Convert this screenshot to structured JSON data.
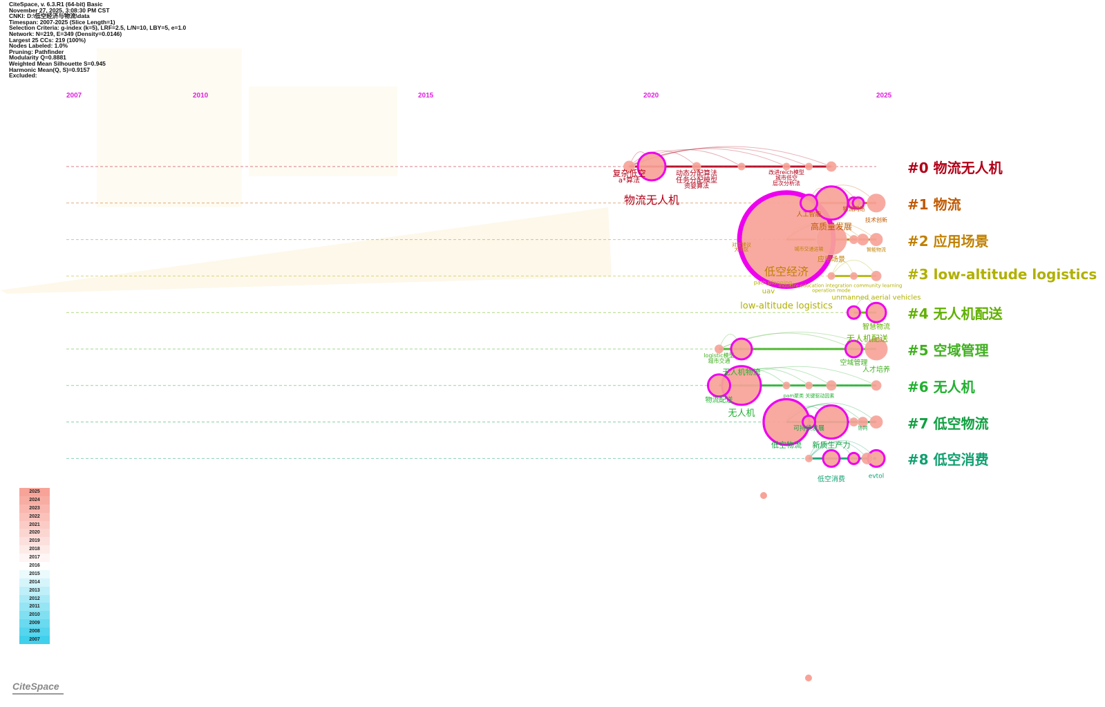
{
  "info": [
    "CiteSpace, v. 6.3.R1 (64-bit) Basic",
    "November 27, 2025, 3:08:30 PM CST",
    "CNKI: D:\\低空经济与物流\\data",
    "Timespan: 2007-2025 (Slice Length=1)",
    "Selection Criteria: g-index (k=5), LRF=2.5, L/N=10, LBY=5, e=1.0",
    "Network: N=219, E=349 (Density=0.0146)",
    "Largest 25 CCs: 219 (100%)",
    "Nodes Labeled: 1.0%",
    "Pruning: Pathfinder",
    "Modularity Q=0.8881",
    "Weighted Mean Silhouette S=0.945",
    "Harmonic Mean(Q, S)=0.9157",
    "Excluded:"
  ],
  "years": [
    "2007",
    "2010",
    "2015",
    "2020",
    "2025"
  ],
  "clusters": [
    {
      "label": "#0 物流无人机",
      "color": "#b00018"
    },
    {
      "label": "#1 物流",
      "color": "#c05a00"
    },
    {
      "label": "#2 应用场景",
      "color": "#c08000"
    },
    {
      "label": "#3 low-altitude logistics",
      "color": "#b0b000"
    },
    {
      "label": "#4 无人机配送",
      "color": "#60b000"
    },
    {
      "label": "#5 空域管理",
      "color": "#40b020"
    },
    {
      "label": "#6 无人机",
      "color": "#20b030"
    },
    {
      "label": "#7 低空物流",
      "color": "#10a040"
    },
    {
      "label": "#8 低空消费",
      "color": "#10a070"
    }
  ],
  "nodes": [
    {
      "c": 0,
      "year": 2019.5,
      "r": 8,
      "burst": false
    },
    {
      "c": 0,
      "year": 2020,
      "r": 20,
      "burst": true
    },
    {
      "c": 0,
      "year": 2021,
      "r": 6
    },
    {
      "c": 0,
      "year": 2022,
      "r": 5
    },
    {
      "c": 0,
      "year": 2023,
      "r": 5
    },
    {
      "c": 0,
      "year": 2023.5,
      "r": 5
    },
    {
      "c": 0,
      "year": 2024,
      "r": 7
    },
    {
      "c": 1,
      "year": 2023.5,
      "r": 12,
      "burst": true
    },
    {
      "c": 1,
      "year": 2024,
      "r": 24,
      "burst": true
    },
    {
      "c": 1,
      "year": 2024.5,
      "r": 8,
      "burst": true
    },
    {
      "c": 1,
      "year": 2024.6,
      "r": 8,
      "burst": true
    },
    {
      "c": 1,
      "year": 2025,
      "r": 13
    },
    {
      "c": 2,
      "year": 2023,
      "r": 68,
      "burst": true
    },
    {
      "c": 2,
      "year": 2024,
      "r": 22
    },
    {
      "c": 2,
      "year": 2024.5,
      "r": 6
    },
    {
      "c": 2,
      "year": 2024.7,
      "r": 8
    },
    {
      "c": 2,
      "year": 2025,
      "r": 9
    },
    {
      "c": 3,
      "year": 2024,
      "r": 5
    },
    {
      "c": 3,
      "year": 2024.5,
      "r": 5
    },
    {
      "c": 3,
      "year": 2025,
      "r": 7
    },
    {
      "c": 4,
      "year": 2024.5,
      "r": 9,
      "burst": true
    },
    {
      "c": 4,
      "year": 2025,
      "r": 14,
      "burst": true
    },
    {
      "c": 5,
      "year": 2021.5,
      "r": 6
    },
    {
      "c": 5,
      "year": 2022,
      "r": 15,
      "burst": true
    },
    {
      "c": 5,
      "year": 2024.5,
      "r": 12,
      "burst": true
    },
    {
      "c": 5,
      "year": 2025,
      "r": 16
    },
    {
      "c": 6,
      "year": 2021.5,
      "r": 16,
      "burst": true
    },
    {
      "c": 6,
      "year": 2022,
      "r": 28,
      "burst": true
    },
    {
      "c": 6,
      "year": 2023,
      "r": 5
    },
    {
      "c": 6,
      "year": 2023.5,
      "r": 5
    },
    {
      "c": 6,
      "year": 2024,
      "r": 7
    },
    {
      "c": 6,
      "year": 2025,
      "r": 7
    },
    {
      "c": 7,
      "year": 2023,
      "r": 33,
      "burst": true
    },
    {
      "c": 7,
      "year": 2023.5,
      "r": 9,
      "burst": true
    },
    {
      "c": 7,
      "year": 2024,
      "r": 24,
      "burst": true
    },
    {
      "c": 7,
      "year": 2024.5,
      "r": 6
    },
    {
      "c": 7,
      "year": 2024.7,
      "r": 7
    },
    {
      "c": 7,
      "year": 2025,
      "r": 9
    },
    {
      "c": 8,
      "year": 2023.5,
      "r": 5
    },
    {
      "c": 8,
      "year": 2024,
      "r": 12,
      "burst": true
    },
    {
      "c": 8,
      "year": 2024.5,
      "r": 8,
      "burst": true
    },
    {
      "c": 8,
      "year": 2024.8,
      "r": 8
    },
    {
      "c": 8,
      "year": 2025,
      "r": 12,
      "burst": true
    }
  ],
  "terms": [
    {
      "t": "复杂低空",
      "c": 0,
      "year": 2019.5,
      "dy": 14,
      "s": 12
    },
    {
      "t": "a*算法",
      "c": 0,
      "year": 2019.5,
      "dy": 23,
      "s": 10
    },
    {
      "t": "动态分配算法",
      "c": 0,
      "year": 2021,
      "dy": 13,
      "s": 10
    },
    {
      "t": "任务分配模型",
      "c": 0,
      "year": 2021,
      "dy": 23,
      "s": 10
    },
    {
      "t": "资婴算法",
      "c": 0,
      "year": 2021,
      "dy": 31,
      "s": 9
    },
    {
      "t": "改进reich模型",
      "c": 0,
      "year": 2023,
      "dy": 11,
      "s": 8
    },
    {
      "t": "城市低空",
      "c": 0,
      "year": 2023,
      "dy": 19,
      "s": 8
    },
    {
      "t": "层次分析法",
      "c": 0,
      "year": 2023,
      "dy": 27,
      "s": 8
    },
    {
      "t": "物流无人机",
      "c": 0,
      "year": 2020,
      "dy": 54,
      "s": 16
    },
    {
      "t": "人工智能",
      "c": 1,
      "year": 2023.5,
      "dy": 19,
      "s": 9
    },
    {
      "t": "高质量发展",
      "c": 1,
      "year": 2024,
      "dy": 38,
      "s": 12
    },
    {
      "t": "物流网络",
      "c": 1,
      "year": 2024.5,
      "dy": 11,
      "s": 8
    },
    {
      "t": "技术创新",
      "c": 1,
      "year": 2025,
      "dy": 27,
      "s": 8
    },
    {
      "t": "对策建议",
      "c": 2,
      "year": 2022,
      "dy": 10,
      "s": 7
    },
    {
      "t": "大湾区",
      "c": 2,
      "year": 2022,
      "dy": 17,
      "s": 7
    },
    {
      "t": "城市交通运输",
      "c": 2,
      "year": 2023.5,
      "dy": 16,
      "s": 7
    },
    {
      "t": "应用场景",
      "c": 2,
      "year": 2024,
      "dy": 32,
      "s": 10
    },
    {
      "t": "智能物流",
      "c": 2,
      "year": 2025,
      "dy": 17,
      "s": 7
    },
    {
      "t": "低空经济",
      "c": 2,
      "year": 2023,
      "dy": 52,
      "s": 16
    },
    {
      "t": "path planning",
      "c": 3,
      "year": 2022.7,
      "dy": 12,
      "s": 8
    },
    {
      "t": "uav",
      "c": 3,
      "year": 2022.6,
      "dy": 25,
      "s": 10
    },
    {
      "t": "operation mode",
      "c": 3,
      "year": 2024,
      "dy": 23,
      "s": 7
    },
    {
      "t": "industry-education integration community learning",
      "c": 3,
      "year": 2024.2,
      "dy": 16,
      "s": 7
    },
    {
      "t": "unmanned aerial vehicles",
      "c": 3,
      "year": 2025,
      "dy": 34,
      "s": 10
    },
    {
      "t": "low-altitude logistics",
      "c": 3,
      "year": 2023,
      "dy": 47,
      "s": 13
    },
    {
      "t": "智慧物流",
      "c": 4,
      "year": 2025,
      "dy": 24,
      "s": 10
    },
    {
      "t": "无人机配送",
      "c": 4,
      "year": 2024.8,
      "dy": 42,
      "s": 12
    },
    {
      "t": "logistic模型",
      "c": 5,
      "year": 2021.5,
      "dy": 12,
      "s": 8
    },
    {
      "t": "城市交通",
      "c": 5,
      "year": 2021.5,
      "dy": 20,
      "s": 8
    },
    {
      "t": "空域管理",
      "c": 5,
      "year": 2024.5,
      "dy": 23,
      "s": 10
    },
    {
      "t": "人才培养",
      "c": 5,
      "year": 2025,
      "dy": 33,
      "s": 10
    },
    {
      "t": "无人机物流",
      "c": 6,
      "year": 2022,
      "dy": -16,
      "s": 11
    },
    {
      "t": "物流配送",
      "c": 6,
      "year": 2021.5,
      "dy": 24,
      "s": 10
    },
    {
      "t": "pam聚类 关键驱动因素",
      "c": 6,
      "year": 2023.5,
      "dy": 17,
      "s": 7
    },
    {
      "t": "无人机",
      "c": 6,
      "year": 2022,
      "dy": 44,
      "s": 13
    },
    {
      "t": "可持续发展",
      "c": 7,
      "year": 2023.5,
      "dy": 12,
      "s": 9
    },
    {
      "t": "协同",
      "c": 7,
      "year": 2024.7,
      "dy": 11,
      "s": 7
    },
    {
      "t": "低空物流",
      "c": 7,
      "year": 2023,
      "dy": 37,
      "s": 11
    },
    {
      "t": "新质生产力",
      "c": 7,
      "year": 2024,
      "dy": 37,
      "s": 11
    },
    {
      "t": "低空消费",
      "c": 8,
      "year": 2024,
      "dy": 33,
      "s": 10
    },
    {
      "t": "evtol",
      "c": 8,
      "year": 2025,
      "dy": 28,
      "s": 9
    }
  ],
  "legend_years": [
    "2025",
    "2024",
    "2023",
    "2022",
    "2021",
    "2020",
    "2019",
    "2018",
    "2017",
    "2016",
    "2015",
    "2014",
    "2013",
    "2012",
    "2011",
    "2010",
    "2009",
    "2008",
    "2007"
  ],
  "logo": "CiteSpace"
}
